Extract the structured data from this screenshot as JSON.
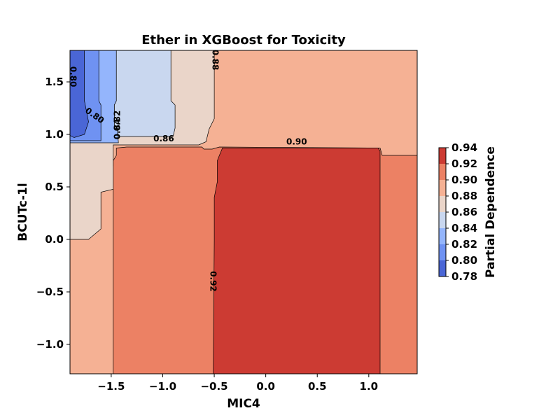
{
  "chart_data": {
    "type": "heatmap",
    "subtype": "filled-contour",
    "title": "Ether in XGBoost for Toxicity",
    "xlabel": "MIC4",
    "ylabel": "BCUTc-1l",
    "xlim": [
      -1.9,
      1.47
    ],
    "ylim": [
      -1.28,
      1.8
    ],
    "xticks": [
      -1.5,
      -1.0,
      -0.5,
      0.0,
      0.5,
      1.0
    ],
    "xtick_labels": [
      "−1.5",
      "−1.0",
      "−0.5",
      "0.0",
      "0.5",
      "1.0"
    ],
    "yticks": [
      -1.0,
      -0.5,
      0.0,
      0.5,
      1.0,
      1.5
    ],
    "ytick_labels": [
      "−1.0",
      "−0.5",
      "0.0",
      "0.5",
      "1.0",
      "1.5"
    ],
    "colorbar": {
      "label": "Partial Dependence",
      "levels": [
        0.78,
        0.8,
        0.82,
        0.84,
        0.86,
        0.88,
        0.9,
        0.92,
        0.94
      ],
      "tick_labels": [
        "0.78",
        "0.80",
        "0.82",
        "0.84",
        "0.86",
        "0.88",
        "0.90",
        "0.92",
        "0.94"
      ],
      "colors": [
        "#4a66d6",
        "#6f92f2",
        "#94b5fc",
        "#c9d7ef",
        "#ead5c9",
        "#f5b194",
        "#ec8164",
        "#cc3b33"
      ]
    },
    "regions": [
      {
        "level_range": [
          0.88,
          0.9
        ],
        "color": "#f5b194",
        "polygon": [
          [
            -1.9,
            -1.28
          ],
          [
            1.47,
            -1.28
          ],
          [
            1.47,
            1.8
          ],
          [
            -1.9,
            1.8
          ]
        ]
      },
      {
        "level_range": [
          0.86,
          0.88
        ],
        "color": "#ead5c9",
        "polygon": [
          [
            -1.9,
            1.8
          ],
          [
            -0.5,
            1.8
          ],
          [
            -0.5,
            1.15
          ],
          [
            -0.55,
            1.05
          ],
          [
            -0.58,
            0.93
          ],
          [
            -0.65,
            0.9
          ],
          [
            -1.48,
            0.9
          ],
          [
            -1.48,
            0.7
          ],
          [
            -1.47,
            0.48
          ],
          [
            -1.6,
            0.45
          ],
          [
            -1.6,
            0.1
          ],
          [
            -1.72,
            0.0
          ],
          [
            -1.9,
            0.0
          ]
        ]
      },
      {
        "level_range": [
          0.84,
          0.86
        ],
        "color": "#c9d7ef",
        "polygon": [
          [
            -1.45,
            1.8
          ],
          [
            -0.92,
            1.8
          ],
          [
            -0.92,
            1.32
          ],
          [
            -0.88,
            1.28
          ],
          [
            -0.88,
            1.06
          ],
          [
            -0.9,
            0.98
          ],
          [
            -1.43,
            0.98
          ],
          [
            -1.44,
            1.04
          ],
          [
            -1.47,
            1.06
          ],
          [
            -1.47,
            1.28
          ],
          [
            -1.45,
            1.32
          ]
        ]
      },
      {
        "level_range": [
          0.82,
          0.84
        ],
        "color": "#94b5fc",
        "polygon": [
          [
            -1.9,
            1.8
          ],
          [
            -1.45,
            1.8
          ],
          [
            -1.45,
            1.32
          ],
          [
            -1.47,
            1.28
          ],
          [
            -1.47,
            1.06
          ],
          [
            -1.44,
            1.04
          ],
          [
            -1.43,
            0.92
          ],
          [
            -1.9,
            0.92
          ]
        ]
      },
      {
        "level_range": [
          0.8,
          0.82
        ],
        "color": "#6f92f2",
        "polygon": [
          [
            -1.9,
            1.8
          ],
          [
            -1.62,
            1.8
          ],
          [
            -1.62,
            1.32
          ],
          [
            -1.6,
            1.28
          ],
          [
            -1.6,
            0.94
          ],
          [
            -1.9,
            0.94
          ]
        ]
      },
      {
        "level_range": [
          0.78,
          0.8
        ],
        "color": "#4a66d6",
        "polygon": [
          [
            -1.9,
            1.8
          ],
          [
            -1.76,
            1.8
          ],
          [
            -1.76,
            1.32
          ],
          [
            -1.72,
            1.12
          ],
          [
            -1.76,
            1.0
          ],
          [
            -1.86,
            0.97
          ],
          [
            -1.9,
            0.99
          ]
        ]
      },
      {
        "level_range": [
          0.9,
          0.92
        ],
        "color": "#ec8164",
        "polygon": [
          [
            -1.48,
            -1.28
          ],
          [
            1.47,
            -1.28
          ],
          [
            1.47,
            0.8
          ],
          [
            1.13,
            0.8
          ],
          [
            1.11,
            0.87
          ],
          [
            -0.45,
            0.88
          ],
          [
            -0.52,
            0.86
          ],
          [
            -0.6,
            0.86
          ],
          [
            -0.62,
            0.88
          ],
          [
            -1.35,
            0.88
          ],
          [
            -1.45,
            0.87
          ],
          [
            -1.45,
            0.8
          ],
          [
            -1.48,
            0.75
          ]
        ]
      },
      {
        "level_range": [
          0.92,
          0.94
        ],
        "color": "#cc3b33",
        "polygon": [
          [
            -0.51,
            -1.28
          ],
          [
            1.11,
            -1.28
          ],
          [
            1.11,
            0.84
          ],
          [
            1.09,
            0.87
          ],
          [
            -0.42,
            0.87
          ],
          [
            -0.45,
            0.8
          ],
          [
            -0.47,
            0.75
          ],
          [
            -0.47,
            0.55
          ],
          [
            -0.5,
            0.4
          ],
          [
            -0.5,
            0.0
          ]
        ]
      }
    ],
    "contour_labels": [
      {
        "text": "0.80",
        "x": -1.87,
        "y": 1.55,
        "rotation": 90
      },
      {
        "text": "0.80",
        "x": -1.66,
        "y": 1.18,
        "rotation": 35
      },
      {
        "text": "0.82",
        "x": -1.44,
        "y": 1.13,
        "rotation": -90
      },
      {
        "text": "0.84",
        "x": -1.44,
        "y": 1.05,
        "rotation": -90
      },
      {
        "text": "0.86",
        "x": -0.99,
        "y": 0.96,
        "rotation": 0
      },
      {
        "text": "0.88",
        "x": -0.49,
        "y": 1.71,
        "rotation": 90
      },
      {
        "text": "0.90",
        "x": 0.3,
        "y": 0.93,
        "rotation": 0
      },
      {
        "text": "0.92",
        "x": -0.51,
        "y": -0.4,
        "rotation": 90
      }
    ]
  }
}
